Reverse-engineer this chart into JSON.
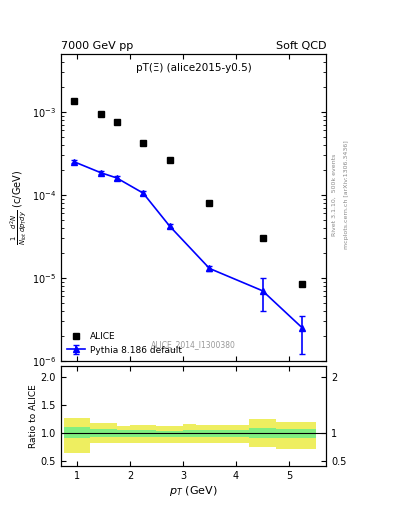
{
  "title_left": "7000 GeV pp",
  "title_right": "Soft QCD",
  "plot_label": "pT(Ξ) (alice2015-y0.5)",
  "watermark": "ALICE_2014_I1300380",
  "right_label_top": "Rivet 3.1.10,  500k events",
  "right_label_bot": "mcplots.cern.ch [arXiv:1306.3436]",
  "ylabel_main": "$\\frac{1}{N_{tot}} \\frac{d^2N}{dp_{T}dy}$ (c/GeV)",
  "ylabel_ratio": "Ratio to ALICE",
  "xlabel": "$p_{T}$ (GeV)",
  "alice_x": [
    0.95,
    1.45,
    1.75,
    2.25,
    2.75,
    3.5,
    4.5,
    5.25
  ],
  "alice_y": [
    0.00135,
    0.00095,
    0.00075,
    0.00042,
    0.00026,
    8e-05,
    3e-05,
    8.5e-06
  ],
  "pythia_x": [
    0.95,
    1.45,
    1.75,
    2.25,
    2.75,
    3.5,
    4.5,
    5.25
  ],
  "pythia_y": [
    0.00025,
    0.000185,
    0.00016,
    0.000105,
    4.2e-05,
    1.3e-05,
    7e-06,
    2.5e-06
  ],
  "pythia_yerr_lo": [
    1e-05,
    8e-06,
    7e-06,
    5e-06,
    2.5e-06,
    8e-07,
    3e-06,
    1.3e-06
  ],
  "pythia_yerr_hi": [
    1e-05,
    8e-06,
    7e-06,
    5e-06,
    2.5e-06,
    8e-07,
    3e-06,
    1e-06
  ],
  "ratio_bins_x": [
    0.75,
    1.25,
    1.75,
    2.0,
    2.5,
    3.0,
    3.25,
    4.25,
    4.75,
    5.5
  ],
  "ratio_green_lo": [
    0.92,
    0.94,
    0.94,
    0.94,
    0.94,
    0.94,
    0.94,
    0.92,
    0.91,
    0.91
  ],
  "ratio_green_hi": [
    1.12,
    1.08,
    1.06,
    1.06,
    1.05,
    1.06,
    1.06,
    1.1,
    1.08,
    1.08
  ],
  "ratio_yellow_lo": [
    0.65,
    0.83,
    0.83,
    0.83,
    0.83,
    0.83,
    0.83,
    0.75,
    0.72,
    0.72
  ],
  "ratio_yellow_hi": [
    1.27,
    1.19,
    1.14,
    1.15,
    1.14,
    1.16,
    1.15,
    1.25,
    1.2,
    1.2
  ],
  "xlim": [
    0.7,
    5.7
  ],
  "ylim_main": [
    1e-06,
    0.005
  ],
  "ylim_ratio": [
    0.42,
    2.2
  ],
  "yticks_ratio": [
    0.5,
    1.0,
    2.0
  ],
  "ytick_labels_ratio": [
    "0.5",
    "1",
    "2"
  ],
  "alice_color": "black",
  "pythia_color": "blue",
  "green_color": "#80ee80",
  "yellow_color": "#eeee60",
  "bg_color": "white"
}
